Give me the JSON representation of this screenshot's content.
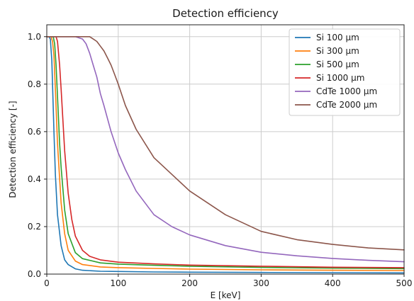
{
  "chart_data": {
    "type": "line",
    "title": "Detection efficiency",
    "xlabel": "E [keV]",
    "ylabel": "Detection efficiency [-]",
    "xlim": [
      0,
      500
    ],
    "ylim": [
      0,
      1.05
    ],
    "xticks": [
      0,
      100,
      200,
      300,
      400,
      500
    ],
    "xtick_labels": [
      "0",
      "100",
      "200",
      "300",
      "400",
      "500"
    ],
    "yticks": [
      0,
      0.2,
      0.4,
      0.6,
      0.8,
      1.0
    ],
    "ytick_labels": [
      "0.0",
      "0.2",
      "0.4",
      "0.6",
      "0.8",
      "1.0"
    ],
    "grid": true,
    "legend_position": "top-right",
    "series": [
      {
        "name": "Si 100 μm",
        "color": "#1f77b4",
        "x": [
          0,
          3,
          5,
          7,
          8,
          10,
          12,
          15,
          20,
          25,
          30,
          40,
          50,
          75,
          100,
          150,
          200,
          300,
          400,
          500
        ],
        "y": [
          1.0,
          1.0,
          0.99,
          0.9,
          0.8,
          0.6,
          0.42,
          0.25,
          0.12,
          0.06,
          0.04,
          0.022,
          0.016,
          0.012,
          0.011,
          0.009,
          0.008,
          0.007,
          0.006,
          0.005
        ]
      },
      {
        "name": "Si 300 μm",
        "color": "#ff7f0e",
        "x": [
          0,
          3,
          6,
          8,
          10,
          12,
          15,
          20,
          25,
          30,
          40,
          50,
          75,
          100,
          150,
          200,
          300,
          400,
          500
        ],
        "y": [
          1.0,
          1.0,
          1.0,
          0.98,
          0.92,
          0.78,
          0.55,
          0.3,
          0.17,
          0.1,
          0.055,
          0.04,
          0.03,
          0.027,
          0.024,
          0.021,
          0.018,
          0.016,
          0.015
        ]
      },
      {
        "name": "Si 500 μm",
        "color": "#2ca02c",
        "x": [
          0,
          3,
          6,
          9,
          11,
          13,
          15,
          18,
          20,
          25,
          30,
          40,
          50,
          75,
          100,
          150,
          200,
          300,
          400,
          500
        ],
        "y": [
          1.0,
          1.0,
          1.0,
          1.0,
          0.97,
          0.88,
          0.75,
          0.55,
          0.45,
          0.27,
          0.17,
          0.09,
          0.065,
          0.047,
          0.042,
          0.037,
          0.033,
          0.028,
          0.025,
          0.023
        ]
      },
      {
        "name": "Si 1000 μm",
        "color": "#d62728",
        "x": [
          0,
          5,
          10,
          13,
          15,
          18,
          20,
          25,
          30,
          35,
          40,
          50,
          60,
          75,
          100,
          150,
          200,
          300,
          400,
          500
        ],
        "y": [
          1.0,
          1.0,
          1.0,
          1.0,
          0.98,
          0.88,
          0.78,
          0.52,
          0.34,
          0.23,
          0.16,
          0.1,
          0.075,
          0.06,
          0.05,
          0.043,
          0.038,
          0.033,
          0.029,
          0.027
        ]
      },
      {
        "name": "CdTe 1000 μm",
        "color": "#9467bd",
        "x": [
          0,
          20,
          40,
          50,
          55,
          60,
          65,
          70,
          75,
          80,
          90,
          100,
          110,
          125,
          150,
          175,
          200,
          250,
          300,
          350,
          400,
          450,
          500
        ],
        "y": [
          1.0,
          1.0,
          1.0,
          0.99,
          0.97,
          0.93,
          0.88,
          0.83,
          0.76,
          0.71,
          0.6,
          0.51,
          0.44,
          0.35,
          0.25,
          0.2,
          0.165,
          0.12,
          0.092,
          0.077,
          0.066,
          0.058,
          0.052
        ]
      },
      {
        "name": "CdTe 2000 μm",
        "color": "#8c564b",
        "x": [
          0,
          20,
          40,
          60,
          65,
          70,
          75,
          80,
          85,
          90,
          95,
          100,
          110,
          125,
          150,
          175,
          200,
          250,
          300,
          350,
          400,
          450,
          500
        ],
        "y": [
          1.0,
          1.0,
          1.0,
          1.0,
          0.99,
          0.98,
          0.96,
          0.94,
          0.91,
          0.88,
          0.84,
          0.8,
          0.71,
          0.61,
          0.49,
          0.42,
          0.35,
          0.25,
          0.18,
          0.145,
          0.125,
          0.11,
          0.102
        ]
      }
    ]
  }
}
